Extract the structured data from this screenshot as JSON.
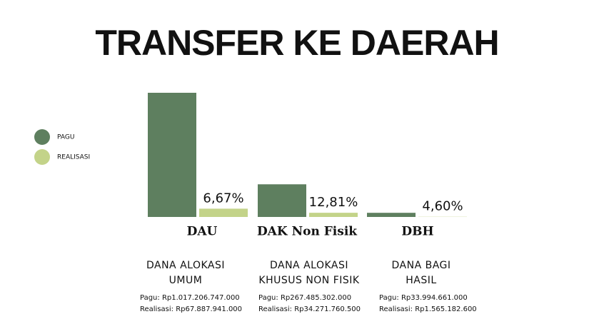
{
  "chart_data": {
    "type": "bar",
    "title": "TRANSFER KE DAERAH",
    "categories": [
      "DAU",
      "DAK Non Fisik",
      "DBH"
    ],
    "series": [
      {
        "name": "PAGU",
        "color": "#5e7f5f",
        "values": [
          1017206747000,
          267485302000,
          33994661000
        ]
      },
      {
        "name": "REALISASI",
        "color": "#c3d389",
        "values": [
          6.67,
          12.81,
          4.6
        ],
        "value_labels": [
          "6,67%",
          "12,81%",
          "4,60%"
        ]
      }
    ],
    "legend": "left",
    "details": [
      {
        "title": [
          "DANA ALOKASI",
          "UMUM"
        ],
        "pagu": "Pagu: Rp1.017.206.747.000",
        "realisasi": "Realisasi: Rp67.887.941.000"
      },
      {
        "title": [
          "DANA ALOKASI",
          "KHUSUS NON FISIK"
        ],
        "pagu": "Pagu: Rp267.485.302.000",
        "realisasi": "Realisasi: Rp34.271.760.500"
      },
      {
        "title": [
          "DANA BAGI",
          "HASIL"
        ],
        "pagu": "Pagu: Rp33.994.661.000",
        "realisasi": "Realisasi: Rp1.565.182.600"
      }
    ]
  }
}
